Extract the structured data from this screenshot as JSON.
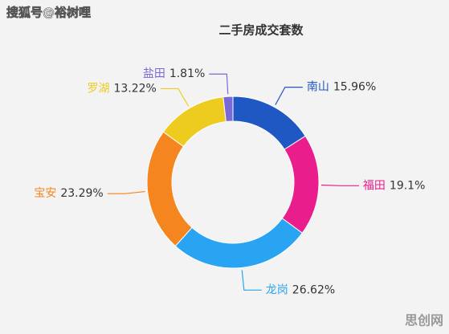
{
  "chart_data": {
    "type": "donut",
    "title": "二手房成交套数",
    "categories": [
      "南山",
      "福田",
      "龙岗",
      "宝安",
      "罗湖",
      "盐田"
    ],
    "values": [
      15.96,
      19.1,
      26.62,
      23.29,
      13.22,
      1.81
    ],
    "value_labels": [
      "15.96%",
      "19.1%",
      "26.62%",
      "23.29%",
      "13.22%",
      "1.81%"
    ],
    "colors": [
      "#1f57c3",
      "#e91e8c",
      "#29a4f2",
      "#f5861f",
      "#eecb1f",
      "#7b68d8"
    ]
  },
  "watermarks": {
    "source": "搜狐号@裕树哩",
    "site": "思创网"
  }
}
